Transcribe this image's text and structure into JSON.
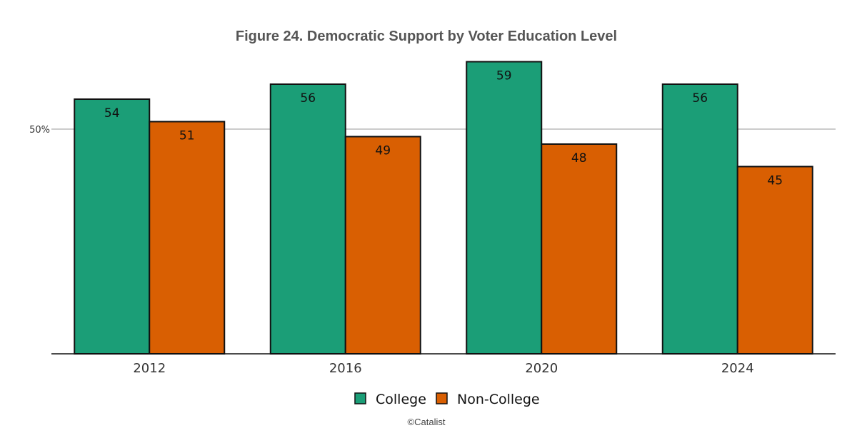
{
  "chart_data": {
    "type": "bar",
    "title": "Figure 24. Democratic Support by Voter Education Level",
    "categories": [
      "2012",
      "2016",
      "2020",
      "2024"
    ],
    "series": [
      {
        "name": "College",
        "values": [
          54,
          56,
          59,
          56
        ],
        "color": "#1b9e77"
      },
      {
        "name": "Non-College",
        "values": [
          51,
          49,
          48,
          45
        ],
        "color": "#d95f02"
      }
    ],
    "yticks": [
      {
        "value": 50,
        "label": "50%"
      }
    ],
    "ylim": [
      20,
      90
    ],
    "xlabel": "",
    "ylabel": "",
    "legend": "bottom-center",
    "grid": "horizontal",
    "credit": "©Catalist"
  }
}
